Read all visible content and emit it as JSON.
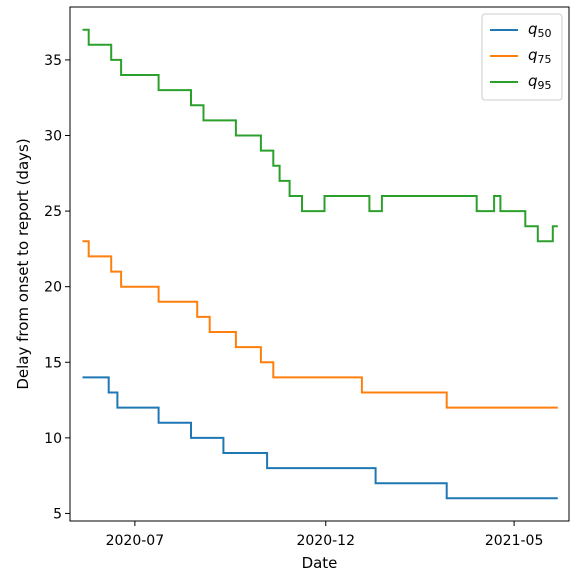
{
  "chart_data": {
    "type": "line",
    "xlabel": "Date",
    "ylabel": "Delay from onset to report (days)",
    "xlim": [
      "2020-05-10",
      "2021-06-14"
    ],
    "ylim": [
      4.5,
      38.5
    ],
    "y_ticks": [
      5,
      10,
      15,
      20,
      25,
      30,
      35
    ],
    "x_ticks": [
      {
        "date": "2020-07-01",
        "label": "2020-07"
      },
      {
        "date": "2020-12-01",
        "label": "2020-12"
      },
      {
        "date": "2021-05-01",
        "label": "2021-05"
      }
    ],
    "grid": false,
    "legend_position": "top-right",
    "series": [
      {
        "name": "q",
        "subscript": "50",
        "color": "#1f77b4",
        "points": [
          [
            "2020-05-20",
            14
          ],
          [
            "2020-06-10",
            14
          ],
          [
            "2020-06-10",
            13
          ],
          [
            "2020-06-17",
            13
          ],
          [
            "2020-06-17",
            12
          ],
          [
            "2020-07-20",
            12
          ],
          [
            "2020-07-20",
            11
          ],
          [
            "2020-08-15",
            11
          ],
          [
            "2020-08-15",
            10
          ],
          [
            "2020-09-10",
            10
          ],
          [
            "2020-09-10",
            9
          ],
          [
            "2020-10-15",
            9
          ],
          [
            "2020-10-15",
            8
          ],
          [
            "2021-01-10",
            8
          ],
          [
            "2021-01-10",
            7
          ],
          [
            "2021-03-08",
            7
          ],
          [
            "2021-03-08",
            6
          ],
          [
            "2021-06-05",
            6
          ]
        ]
      },
      {
        "name": "q",
        "subscript": "75",
        "color": "#ff7f0e",
        "points": [
          [
            "2020-05-20",
            23
          ],
          [
            "2020-05-25",
            23
          ],
          [
            "2020-05-25",
            22
          ],
          [
            "2020-06-12",
            22
          ],
          [
            "2020-06-12",
            21
          ],
          [
            "2020-06-20",
            21
          ],
          [
            "2020-06-20",
            20
          ],
          [
            "2020-07-20",
            20
          ],
          [
            "2020-07-20",
            19
          ],
          [
            "2020-08-20",
            19
          ],
          [
            "2020-08-20",
            18
          ],
          [
            "2020-08-30",
            18
          ],
          [
            "2020-08-30",
            17
          ],
          [
            "2020-09-20",
            17
          ],
          [
            "2020-09-20",
            16
          ],
          [
            "2020-10-10",
            16
          ],
          [
            "2020-10-10",
            15
          ],
          [
            "2020-10-20",
            15
          ],
          [
            "2020-10-20",
            14
          ],
          [
            "2020-12-30",
            14
          ],
          [
            "2020-12-30",
            13
          ],
          [
            "2021-03-08",
            13
          ],
          [
            "2021-03-08",
            12
          ],
          [
            "2021-06-05",
            12
          ]
        ]
      },
      {
        "name": "q",
        "subscript": "95",
        "color": "#2ca02c",
        "points": [
          [
            "2020-05-20",
            37
          ],
          [
            "2020-05-25",
            37
          ],
          [
            "2020-05-25",
            36
          ],
          [
            "2020-06-12",
            36
          ],
          [
            "2020-06-12",
            35
          ],
          [
            "2020-06-20",
            35
          ],
          [
            "2020-06-20",
            34
          ],
          [
            "2020-07-20",
            34
          ],
          [
            "2020-07-20",
            33
          ],
          [
            "2020-08-15",
            33
          ],
          [
            "2020-08-15",
            32
          ],
          [
            "2020-08-25",
            32
          ],
          [
            "2020-08-25",
            31
          ],
          [
            "2020-09-20",
            31
          ],
          [
            "2020-09-20",
            30
          ],
          [
            "2020-10-10",
            30
          ],
          [
            "2020-10-10",
            29
          ],
          [
            "2020-10-20",
            29
          ],
          [
            "2020-10-20",
            28
          ],
          [
            "2020-10-25",
            28
          ],
          [
            "2020-10-25",
            27
          ],
          [
            "2020-11-02",
            27
          ],
          [
            "2020-11-02",
            26
          ],
          [
            "2020-11-12",
            26
          ],
          [
            "2020-11-12",
            25
          ],
          [
            "2020-11-30",
            25
          ],
          [
            "2020-11-30",
            26
          ],
          [
            "2021-01-05",
            26
          ],
          [
            "2021-01-05",
            25
          ],
          [
            "2021-01-15",
            25
          ],
          [
            "2021-01-15",
            26
          ],
          [
            "2021-04-01",
            26
          ],
          [
            "2021-04-01",
            25
          ],
          [
            "2021-04-15",
            25
          ],
          [
            "2021-04-15",
            26
          ],
          [
            "2021-04-20",
            26
          ],
          [
            "2021-04-20",
            25
          ],
          [
            "2021-05-10",
            25
          ],
          [
            "2021-05-10",
            24
          ],
          [
            "2021-05-20",
            24
          ],
          [
            "2021-05-20",
            23
          ],
          [
            "2021-06-01",
            23
          ],
          [
            "2021-06-01",
            24
          ],
          [
            "2021-06-05",
            24
          ]
        ]
      }
    ]
  }
}
